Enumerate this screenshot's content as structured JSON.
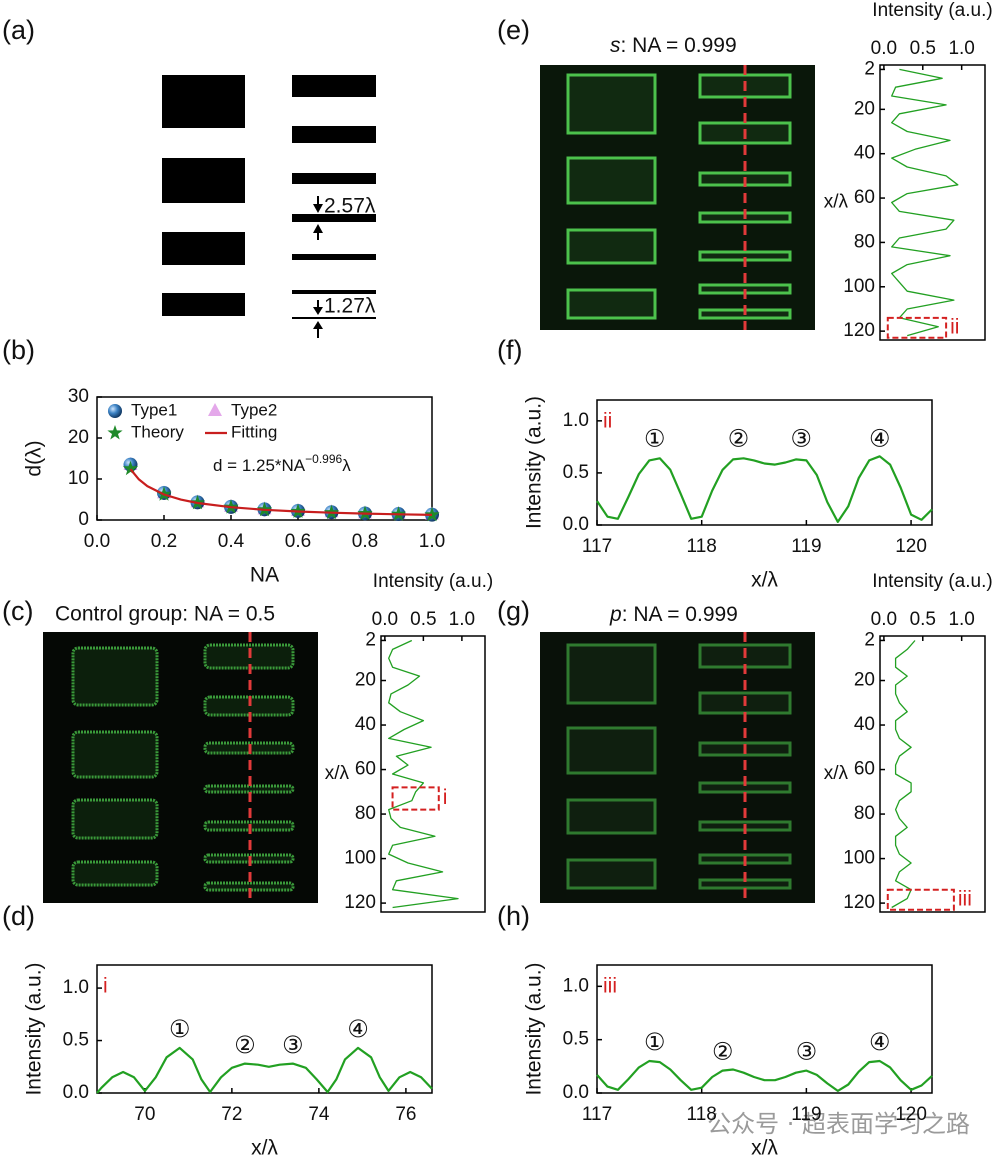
{
  "panel_labels": [
    "(a)",
    "(b)",
    "(c)",
    "(d)",
    "(e)",
    "(f)",
    "(g)",
    "(h)"
  ],
  "schematic": {
    "annotations": [
      "2.57λ",
      "1.27λ"
    ]
  },
  "image_titles": [
    {
      "text": "Control group: NA = 0.5"
    },
    {
      "symbol": "s",
      "text": ": NA = 0.999"
    },
    {
      "symbol": "p",
      "text": ": NA = 0.999"
    }
  ],
  "watermark": "公众号 · 超表面学习之路",
  "chart_data": [
    {
      "type": "scatter",
      "xlabel": "NA",
      "ylabel": "d(λ)",
      "legend": "upper left",
      "xlim": [
        0,
        1
      ],
      "xticks": [
        {
          "value": 0,
          "label": "0.0"
        },
        0.2,
        0.4,
        0.6,
        0.8,
        {
          "value": 1,
          "label": "1.0"
        }
      ],
      "ylim": [
        0,
        30
      ],
      "yticks": [
        0,
        10,
        20,
        30
      ],
      "formula": {
        "text": "d = 1.25*NA",
        "exponent": "−0.996",
        "suffix": "λ"
      },
      "series": [
        {
          "name": "Type2",
          "marker": "triangle",
          "color": "#e4a8ea",
          "x": [
            0.1,
            0.2,
            0.3,
            0.4,
            0.5,
            0.6,
            0.7,
            0.8,
            0.9,
            1.0
          ],
          "values": [
            13.4,
            6.5,
            4.3,
            3.2,
            2.6,
            2.2,
            1.9,
            1.6,
            1.45,
            1.3
          ]
        },
        {
          "name": "Type1",
          "marker": "sphere",
          "color": "#2e6fb0",
          "x": [
            0.1,
            0.2,
            0.3,
            0.4,
            0.5,
            0.6,
            0.7,
            0.8,
            0.9,
            1.0
          ],
          "values": [
            13.5,
            6.6,
            4.3,
            3.2,
            2.6,
            2.2,
            1.9,
            1.6,
            1.45,
            1.3
          ]
        },
        {
          "name": "Theory",
          "marker": "star",
          "color": "#1f8a2a",
          "x": [
            0.1,
            0.2,
            0.3,
            0.4,
            0.5,
            0.6,
            0.7,
            0.8,
            0.9,
            1.0
          ],
          "values": [
            12.5,
            6.25,
            4.17,
            3.13,
            2.5,
            2.08,
            1.79,
            1.56,
            1.39,
            1.25
          ]
        },
        {
          "name": "Fitting",
          "marker": "line",
          "color": "#c81e1e",
          "x": [
            0.1,
            0.125,
            0.15,
            0.2,
            0.25,
            0.3,
            0.4,
            0.5,
            0.6,
            0.7,
            0.8,
            0.9,
            1.0
          ],
          "values": [
            12.39,
            9.91,
            8.28,
            6.21,
            4.97,
            4.15,
            3.11,
            2.49,
            2.08,
            1.78,
            1.56,
            1.39,
            1.25
          ]
        }
      ]
    },
    {
      "type": "line",
      "orientation": "vertical",
      "xlabel": "x/λ",
      "ylabel": "Intensity (a.u.)",
      "color": "#22a022",
      "xlim": [
        0,
        124
      ],
      "xticks": [
        2,
        20,
        40,
        60,
        80,
        100,
        120
      ],
      "ylim": [
        -0.05,
        1.3
      ],
      "yticks": [
        {
          "value": 0,
          "label": "0.0"
        },
        {
          "value": 0.5,
          "label": "0.5"
        },
        {
          "value": 1,
          "label": "1.0"
        }
      ],
      "x": [
        2,
        6,
        10,
        14,
        18,
        22,
        26,
        30,
        34,
        38,
        42,
        46,
        50,
        54,
        58,
        62,
        66,
        70,
        74,
        78,
        82,
        86,
        90,
        94,
        98,
        102,
        106,
        110,
        114,
        118,
        122
      ],
      "values": [
        0.35,
        0.1,
        0.05,
        0.1,
        0.45,
        0.3,
        0.08,
        0.05,
        0.2,
        0.5,
        0.25,
        0.05,
        0.6,
        0.15,
        0.3,
        0.1,
        0.5,
        0.4,
        0.35,
        0.05,
        0.08,
        0.2,
        0.65,
        0.1,
        0.05,
        0.3,
        0.75,
        0.15,
        0.1,
        0.95,
        0.1
      ],
      "highlight": {
        "label": "i",
        "color": "#d42020",
        "x": [
          68,
          78
        ],
        "values": [
          0.1,
          0.7
        ]
      }
    },
    {
      "type": "line",
      "xlabel": "x/λ",
      "ylabel": "Intensity (a.u.)",
      "color": "#22a022",
      "tag": "i",
      "tag_color": "#d42020",
      "xlim": [
        68.9,
        76.6
      ],
      "xticks": [
        70,
        72,
        74,
        76
      ],
      "ylim": [
        0,
        1.22
      ],
      "yticks": [
        {
          "value": 0,
          "label": "0.0"
        },
        {
          "value": 0.5,
          "label": "0.5"
        },
        {
          "value": 1,
          "label": "1.0"
        }
      ],
      "x": [
        68.9,
        69.0,
        69.25,
        69.5,
        69.75,
        70.0,
        70.25,
        70.5,
        70.8,
        71.1,
        71.3,
        71.5,
        71.75,
        72.0,
        72.3,
        72.6,
        72.85,
        73.1,
        73.4,
        73.7,
        73.95,
        74.2,
        74.4,
        74.6,
        74.9,
        75.2,
        75.4,
        75.6,
        75.85,
        76.1,
        76.35,
        76.6
      ],
      "values": [
        0.0,
        0.05,
        0.15,
        0.2,
        0.15,
        0.02,
        0.15,
        0.34,
        0.43,
        0.32,
        0.13,
        0.01,
        0.15,
        0.24,
        0.28,
        0.27,
        0.25,
        0.27,
        0.28,
        0.24,
        0.13,
        0.01,
        0.13,
        0.32,
        0.43,
        0.34,
        0.15,
        0.02,
        0.15,
        0.2,
        0.15,
        0.04
      ],
      "annotations": [
        {
          "text": "①",
          "x": 70.8,
          "y": 0.6
        },
        {
          "text": "②",
          "x": 72.3,
          "y": 0.45
        },
        {
          "text": "③",
          "x": 73.4,
          "y": 0.45
        },
        {
          "text": "④",
          "x": 74.9,
          "y": 0.6
        }
      ]
    },
    {
      "type": "line",
      "orientation": "vertical",
      "xlabel": "x/λ",
      "ylabel": "Intensity (a.u.)",
      "color": "#22a022",
      "xlim": [
        0,
        124
      ],
      "xticks": [
        2,
        20,
        40,
        60,
        80,
        100,
        120
      ],
      "ylim": [
        -0.05,
        1.3
      ],
      "yticks": [
        {
          "value": 0,
          "label": "0.0"
        },
        {
          "value": 0.5,
          "label": "0.5"
        },
        {
          "value": 1,
          "label": "1.0"
        }
      ],
      "x": [
        2,
        6,
        10,
        14,
        18,
        22,
        26,
        30,
        34,
        38,
        42,
        46,
        50,
        54,
        58,
        62,
        66,
        70,
        74,
        78,
        82,
        86,
        90,
        94,
        98,
        102,
        106,
        110,
        114,
        118,
        122
      ],
      "values": [
        0.2,
        0.75,
        0.15,
        0.1,
        0.8,
        0.2,
        0.1,
        0.3,
        0.85,
        0.4,
        0.1,
        0.3,
        0.8,
        0.95,
        0.3,
        0.1,
        0.2,
        0.9,
        0.8,
        0.2,
        0.1,
        0.85,
        0.3,
        0.1,
        0.2,
        0.3,
        0.9,
        0.3,
        0.2,
        0.7,
        0.3
      ],
      "highlight": {
        "label": "ii",
        "color": "#d42020",
        "x": [
          114,
          123
        ],
        "values": [
          0.05,
          0.8
        ]
      }
    },
    {
      "type": "line",
      "xlabel": "x/λ",
      "ylabel": "Intensity (a.u.)",
      "color": "#22a022",
      "tag": "ii",
      "tag_color": "#d42020",
      "xlim": [
        117,
        120.2
      ],
      "xticks": [
        117,
        118,
        119,
        120
      ],
      "ylim": [
        0,
        1.2
      ],
      "yticks": [
        {
          "value": 0,
          "label": "0.0"
        },
        {
          "value": 0.5,
          "label": "0.5"
        },
        {
          "value": 1,
          "label": "1.0"
        }
      ],
      "x": [
        117.0,
        117.1,
        117.2,
        117.3,
        117.4,
        117.5,
        117.6,
        117.7,
        117.8,
        117.9,
        118.0,
        118.1,
        118.2,
        118.3,
        118.4,
        118.5,
        118.6,
        118.7,
        118.8,
        118.9,
        119.0,
        119.1,
        119.2,
        119.3,
        119.4,
        119.5,
        119.6,
        119.7,
        119.8,
        119.9,
        120.0,
        120.1,
        120.2
      ],
      "values": [
        0.23,
        0.08,
        0.06,
        0.27,
        0.49,
        0.62,
        0.64,
        0.53,
        0.3,
        0.06,
        0.08,
        0.33,
        0.53,
        0.63,
        0.64,
        0.62,
        0.59,
        0.58,
        0.6,
        0.63,
        0.62,
        0.48,
        0.22,
        0.03,
        0.18,
        0.45,
        0.62,
        0.66,
        0.58,
        0.36,
        0.1,
        0.05,
        0.15
      ],
      "annotations": [
        {
          "text": "①",
          "x": 117.55,
          "y": 0.82
        },
        {
          "text": "②",
          "x": 118.35,
          "y": 0.82
        },
        {
          "text": "③",
          "x": 118.95,
          "y": 0.82
        },
        {
          "text": "④",
          "x": 119.7,
          "y": 0.82
        }
      ]
    },
    {
      "type": "line",
      "orientation": "vertical",
      "xlabel": "x/λ",
      "ylabel": "Intensity (a.u.)",
      "color": "#22a022",
      "xlim": [
        0,
        124
      ],
      "xticks": [
        2,
        20,
        40,
        60,
        80,
        100,
        120
      ],
      "ylim": [
        -0.05,
        1.3
      ],
      "yticks": [
        {
          "value": 0,
          "label": "0.0"
        },
        {
          "value": 0.5,
          "label": "0.5"
        },
        {
          "value": 1,
          "label": "1.0"
        }
      ],
      "x": [
        2,
        6,
        10,
        14,
        18,
        22,
        26,
        30,
        34,
        38,
        42,
        46,
        50,
        54,
        58,
        62,
        66,
        70,
        74,
        78,
        82,
        86,
        90,
        94,
        98,
        102,
        106,
        110,
        114,
        118,
        122
      ],
      "values": [
        0.4,
        0.3,
        0.15,
        0.15,
        0.3,
        0.15,
        0.15,
        0.2,
        0.3,
        0.15,
        0.15,
        0.2,
        0.35,
        0.2,
        0.15,
        0.15,
        0.35,
        0.35,
        0.2,
        0.15,
        0.2,
        0.3,
        0.15,
        0.15,
        0.2,
        0.35,
        0.2,
        0.15,
        0.35,
        0.3,
        0.1
      ],
      "highlight": {
        "label": "iii",
        "color": "#d42020",
        "x": [
          114,
          123
        ],
        "values": [
          0.05,
          0.9
        ]
      }
    },
    {
      "type": "line",
      "xlabel": "x/λ",
      "ylabel": "Intensity (a.u.)",
      "color": "#22a022",
      "tag": "iii",
      "tag_color": "#d42020",
      "xlim": [
        117,
        120.2
      ],
      "xticks": [
        117,
        118,
        119,
        120
      ],
      "ylim": [
        0,
        1.2
      ],
      "yticks": [
        {
          "value": 0,
          "label": "0.0"
        },
        {
          "value": 0.5,
          "label": "0.5"
        },
        {
          "value": 1,
          "label": "1.0"
        }
      ],
      "x": [
        117.0,
        117.1,
        117.2,
        117.3,
        117.4,
        117.5,
        117.6,
        117.7,
        117.8,
        117.9,
        118.0,
        118.1,
        118.2,
        118.3,
        118.4,
        118.5,
        118.6,
        118.7,
        118.8,
        118.9,
        119.0,
        119.1,
        119.2,
        119.3,
        119.4,
        119.5,
        119.6,
        119.7,
        119.8,
        119.9,
        120.0,
        120.1,
        120.2
      ],
      "values": [
        0.17,
        0.06,
        0.03,
        0.13,
        0.24,
        0.3,
        0.29,
        0.22,
        0.12,
        0.03,
        0.05,
        0.15,
        0.21,
        0.22,
        0.19,
        0.15,
        0.12,
        0.12,
        0.15,
        0.19,
        0.21,
        0.17,
        0.09,
        0.02,
        0.08,
        0.2,
        0.29,
        0.3,
        0.24,
        0.12,
        0.03,
        0.07,
        0.16
      ],
      "annotations": [
        {
          "text": "①",
          "x": 117.55,
          "y": 0.47
        },
        {
          "text": "②",
          "x": 118.2,
          "y": 0.38
        },
        {
          "text": "③",
          "x": 119.0,
          "y": 0.38
        },
        {
          "text": "④",
          "x": 119.7,
          "y": 0.47
        }
      ]
    }
  ]
}
